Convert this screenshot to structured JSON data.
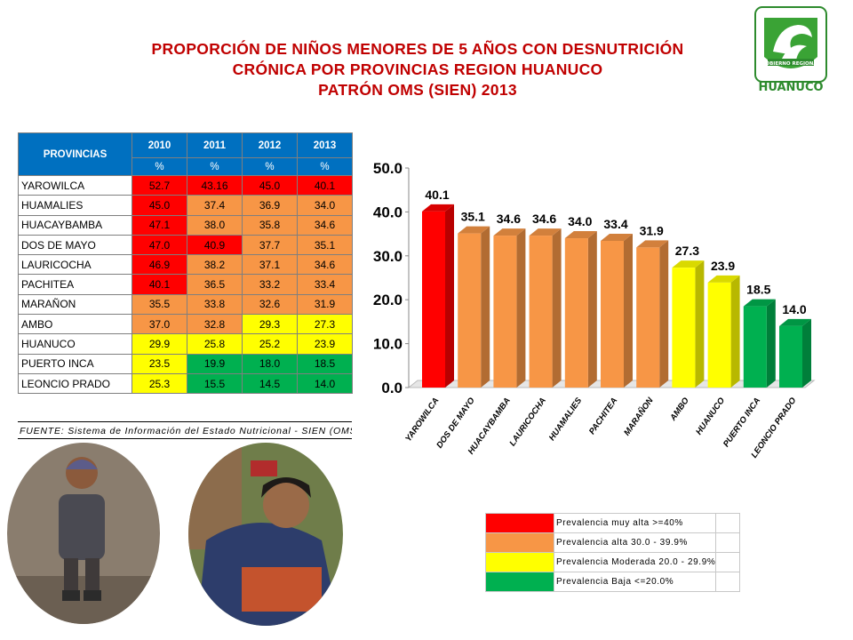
{
  "title": {
    "line1": "PROPORCIÓN   DE NIÑOS MENORES DE 5 AÑOS CON DESNUTRICIÓN",
    "line2": "CRÓNICA POR PROVINCIAS REGION HUANUCO",
    "line3": "PATRÓN OMS (SIEN) 2013"
  },
  "logo": {
    "top_text": "GOBIERNO REGIONAL",
    "name": "HUANUCO",
    "icon": "regional-government-shield-icon"
  },
  "table": {
    "header_label": "PROVINCIAS",
    "years": [
      "2010",
      "2011",
      "2012",
      "2013"
    ],
    "units": [
      "%",
      "%",
      "%",
      "%"
    ],
    "rows": [
      {
        "name": "YAROWILCA",
        "values": [
          "52.7",
          "43.16",
          "45.0",
          "40.1"
        ],
        "colors": [
          "#ff0000",
          "#ff0000",
          "#ff0000",
          "#ff0000"
        ]
      },
      {
        "name": "HUAMALIES",
        "values": [
          "45.0",
          "37.4",
          "36.9",
          "34.0"
        ],
        "colors": [
          "#ff0000",
          "#f79646",
          "#f79646",
          "#f79646"
        ]
      },
      {
        "name": "HUACAYBAMBA",
        "values": [
          "47.1",
          "38.0",
          "35.8",
          "34.6"
        ],
        "colors": [
          "#ff0000",
          "#f79646",
          "#f79646",
          "#f79646"
        ]
      },
      {
        "name": "DOS DE MAYO",
        "values": [
          "47.0",
          "40.9",
          "37.7",
          "35.1"
        ],
        "colors": [
          "#ff0000",
          "#ff0000",
          "#f79646",
          "#f79646"
        ]
      },
      {
        "name": "LAURICOCHA",
        "values": [
          "46.9",
          "38.2",
          "37.1",
          "34.6"
        ],
        "colors": [
          "#ff0000",
          "#f79646",
          "#f79646",
          "#f79646"
        ]
      },
      {
        "name": "PACHITEA",
        "values": [
          "40.1",
          "36.5",
          "33.2",
          "33.4"
        ],
        "colors": [
          "#ff0000",
          "#f79646",
          "#f79646",
          "#f79646"
        ]
      },
      {
        "name": "MARAÑON",
        "values": [
          "35.5",
          "33.8",
          "32.6",
          "31.9"
        ],
        "colors": [
          "#f79646",
          "#f79646",
          "#f79646",
          "#f79646"
        ]
      },
      {
        "name": "AMBO",
        "values": [
          "37.0",
          "32.8",
          "29.3",
          "27.3"
        ],
        "colors": [
          "#f79646",
          "#f79646",
          "#ffff00",
          "#ffff00"
        ]
      },
      {
        "name": "HUANUCO",
        "values": [
          "29.9",
          "25.8",
          "25.2",
          "23.9"
        ],
        "colors": [
          "#ffff00",
          "#ffff00",
          "#ffff00",
          "#ffff00"
        ]
      },
      {
        "name": "PUERTO INCA",
        "values": [
          "23.5",
          "19.9",
          "18.0",
          "18.5"
        ],
        "colors": [
          "#ffff00",
          "#00b050",
          "#00b050",
          "#00b050"
        ]
      },
      {
        "name": "LEONCIO PRADO",
        "values": [
          "25.3",
          "15.5",
          "14.5",
          "14.0"
        ],
        "colors": [
          "#ffff00",
          "#00b050",
          "#00b050",
          "#00b050"
        ]
      }
    ]
  },
  "source": "FUENTE: Sistema de Información del Estado Nutricional - SIEN (OMS",
  "chart_data": {
    "type": "bar",
    "categories": [
      "YAROWILCA",
      "DOS DE MAYO",
      "HUACAYBAMBA",
      "LAURICOCHA",
      "HUAMALIES",
      "PACHITEA",
      "MARAÑON",
      "AMBO",
      "HUANUCO",
      "PUERTO INCA",
      "LEONCIO PRADO"
    ],
    "values": [
      40.1,
      35.1,
      34.6,
      34.6,
      34.0,
      33.4,
      31.9,
      27.3,
      23.9,
      18.5,
      14.0
    ],
    "data_labels": [
      "40.1",
      "35.1",
      "34.6",
      "34.6",
      "34.0",
      "33.4",
      "31.9",
      "27.3",
      "23.9",
      "18.5",
      "14.0"
    ],
    "bar_colors": [
      "#ff0000",
      "#f79646",
      "#f79646",
      "#f79646",
      "#f79646",
      "#f79646",
      "#f79646",
      "#ffff00",
      "#ffff00",
      "#00b050",
      "#00b050"
    ],
    "y_ticks": [
      "0.0",
      "10.0",
      "20.0",
      "30.0",
      "40.0",
      "50.0"
    ],
    "ylim": [
      0,
      50
    ],
    "grid": false,
    "style": "3d"
  },
  "legend": {
    "items": [
      {
        "color": "#ff0000",
        "label": "Prevalencia muy alta   >=40%"
      },
      {
        "color": "#f79646",
        "label": "Prevalencia alta   30.0 - 39.9%"
      },
      {
        "color": "#ffff00",
        "label": "Prevalencia Moderada    20.0 - 29.9%"
      },
      {
        "color": "#00b050",
        "label": "Prevalencia Baja    <=20.0%"
      }
    ]
  }
}
